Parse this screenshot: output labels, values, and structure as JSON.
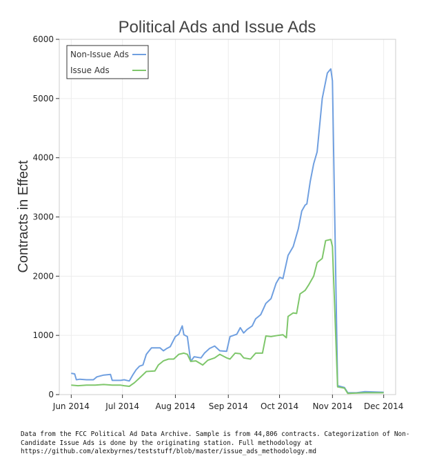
{
  "chart_data": {
    "type": "line",
    "title": "Political Ads and Issue Ads",
    "xlabel": "",
    "ylabel": "Contracts in Effect",
    "ylim": [
      0,
      6000
    ],
    "yticks": [
      0,
      1000,
      2000,
      3000,
      4000,
      5000,
      6000
    ],
    "xlim": [
      "2014-05-25",
      "2014-12-08"
    ],
    "xticks": [
      {
        "date": "2014-06-01",
        "label": "Jun 2014"
      },
      {
        "date": "2014-07-01",
        "label": "Jul 2014"
      },
      {
        "date": "2014-08-01",
        "label": "Aug 2014"
      },
      {
        "date": "2014-09-01",
        "label": "Sep 2014"
      },
      {
        "date": "2014-10-01",
        "label": "Oct 2014"
      },
      {
        "date": "2014-11-01",
        "label": "Nov 2014"
      },
      {
        "date": "2014-12-01",
        "label": "Dec 2014"
      }
    ],
    "grid": true,
    "legend_position": "top-left",
    "series": [
      {
        "name": "Non-Issue Ads",
        "color": "#6f9fe0",
        "points": [
          [
            "2014-06-01",
            360
          ],
          [
            "2014-06-03",
            350
          ],
          [
            "2014-06-04",
            250
          ],
          [
            "2014-06-06",
            260
          ],
          [
            "2014-06-10",
            250
          ],
          [
            "2014-06-14",
            250
          ],
          [
            "2014-06-16",
            300
          ],
          [
            "2014-06-20",
            330
          ],
          [
            "2014-06-24",
            340
          ],
          [
            "2014-06-25",
            240
          ],
          [
            "2014-06-30",
            240
          ],
          [
            "2014-07-02",
            250
          ],
          [
            "2014-07-05",
            230
          ],
          [
            "2014-07-07",
            330
          ],
          [
            "2014-07-09",
            420
          ],
          [
            "2014-07-11",
            480
          ],
          [
            "2014-07-13",
            500
          ],
          [
            "2014-07-15",
            680
          ],
          [
            "2014-07-18",
            790
          ],
          [
            "2014-07-23",
            790
          ],
          [
            "2014-07-25",
            740
          ],
          [
            "2014-07-27",
            780
          ],
          [
            "2014-07-29",
            810
          ],
          [
            "2014-08-01",
            980
          ],
          [
            "2014-08-03",
            1020
          ],
          [
            "2014-08-05",
            1160
          ],
          [
            "2014-08-06",
            1010
          ],
          [
            "2014-08-08",
            980
          ],
          [
            "2014-08-10",
            560
          ],
          [
            "2014-08-12",
            640
          ],
          [
            "2014-08-16",
            620
          ],
          [
            "2014-08-18",
            700
          ],
          [
            "2014-08-21",
            780
          ],
          [
            "2014-08-24",
            820
          ],
          [
            "2014-08-27",
            740
          ],
          [
            "2014-08-31",
            730
          ],
          [
            "2014-09-02",
            980
          ],
          [
            "2014-09-06",
            1020
          ],
          [
            "2014-09-08",
            1130
          ],
          [
            "2014-09-10",
            1040
          ],
          [
            "2014-09-12",
            1100
          ],
          [
            "2014-09-15",
            1160
          ],
          [
            "2014-09-17",
            1280
          ],
          [
            "2014-09-20",
            1350
          ],
          [
            "2014-09-23",
            1540
          ],
          [
            "2014-09-26",
            1620
          ],
          [
            "2014-09-29",
            1880
          ],
          [
            "2014-10-01",
            1980
          ],
          [
            "2014-10-03",
            1960
          ],
          [
            "2014-10-06",
            2350
          ],
          [
            "2014-10-09",
            2500
          ],
          [
            "2014-10-12",
            2800
          ],
          [
            "2014-10-14",
            3100
          ],
          [
            "2014-10-16",
            3200
          ],
          [
            "2014-10-17",
            3220
          ],
          [
            "2014-10-19",
            3600
          ],
          [
            "2014-10-21",
            3900
          ],
          [
            "2014-10-23",
            4100
          ],
          [
            "2014-10-26",
            5000
          ],
          [
            "2014-10-29",
            5430
          ],
          [
            "2014-10-31",
            5500
          ],
          [
            "2014-11-01",
            5300
          ],
          [
            "2014-11-04",
            150
          ],
          [
            "2014-11-08",
            120
          ],
          [
            "2014-11-10",
            30
          ],
          [
            "2014-11-15",
            30
          ],
          [
            "2014-11-20",
            50
          ],
          [
            "2014-12-01",
            40
          ]
        ]
      },
      {
        "name": "Issue Ads",
        "color": "#7ec66a",
        "points": [
          [
            "2014-06-01",
            160
          ],
          [
            "2014-06-05",
            150
          ],
          [
            "2014-06-10",
            160
          ],
          [
            "2014-06-15",
            160
          ],
          [
            "2014-06-20",
            170
          ],
          [
            "2014-06-25",
            160
          ],
          [
            "2014-06-30",
            160
          ],
          [
            "2014-07-02",
            150
          ],
          [
            "2014-07-05",
            140
          ],
          [
            "2014-07-08",
            200
          ],
          [
            "2014-07-11",
            280
          ],
          [
            "2014-07-15",
            390
          ],
          [
            "2014-07-20",
            400
          ],
          [
            "2014-07-22",
            500
          ],
          [
            "2014-07-25",
            570
          ],
          [
            "2014-07-28",
            600
          ],
          [
            "2014-07-31",
            600
          ],
          [
            "2014-08-03",
            680
          ],
          [
            "2014-08-06",
            700
          ],
          [
            "2014-08-08",
            680
          ],
          [
            "2014-08-10",
            560
          ],
          [
            "2014-08-13",
            570
          ],
          [
            "2014-08-17",
            500
          ],
          [
            "2014-08-20",
            580
          ],
          [
            "2014-08-24",
            620
          ],
          [
            "2014-08-27",
            680
          ],
          [
            "2014-08-31",
            620
          ],
          [
            "2014-09-02",
            600
          ],
          [
            "2014-09-05",
            700
          ],
          [
            "2014-09-08",
            690
          ],
          [
            "2014-09-10",
            620
          ],
          [
            "2014-09-14",
            600
          ],
          [
            "2014-09-17",
            700
          ],
          [
            "2014-09-21",
            700
          ],
          [
            "2014-09-23",
            990
          ],
          [
            "2014-09-26",
            980
          ],
          [
            "2014-09-30",
            1000
          ],
          [
            "2014-10-03",
            1010
          ],
          [
            "2014-10-05",
            960
          ],
          [
            "2014-10-06",
            1320
          ],
          [
            "2014-10-09",
            1380
          ],
          [
            "2014-10-11",
            1370
          ],
          [
            "2014-10-13",
            1700
          ],
          [
            "2014-10-16",
            1760
          ],
          [
            "2014-10-18",
            1850
          ],
          [
            "2014-10-21",
            2000
          ],
          [
            "2014-10-23",
            2230
          ],
          [
            "2014-10-26",
            2300
          ],
          [
            "2014-10-28",
            2600
          ],
          [
            "2014-10-31",
            2620
          ],
          [
            "2014-11-01",
            2500
          ],
          [
            "2014-11-04",
            130
          ],
          [
            "2014-11-08",
            110
          ],
          [
            "2014-11-10",
            20
          ],
          [
            "2014-11-20",
            30
          ],
          [
            "2014-12-01",
            30
          ]
        ]
      }
    ]
  },
  "footnote": "Data from the FCC Political Ad Data Archive.  Sample is from 44,806 contracts.  Categorization of Non-Candidate Issue Ads is done by the originating station.  Full methodology at https://github.com/alexbyrnes/teststuff/blob/master/issue_ads_methodology.md"
}
